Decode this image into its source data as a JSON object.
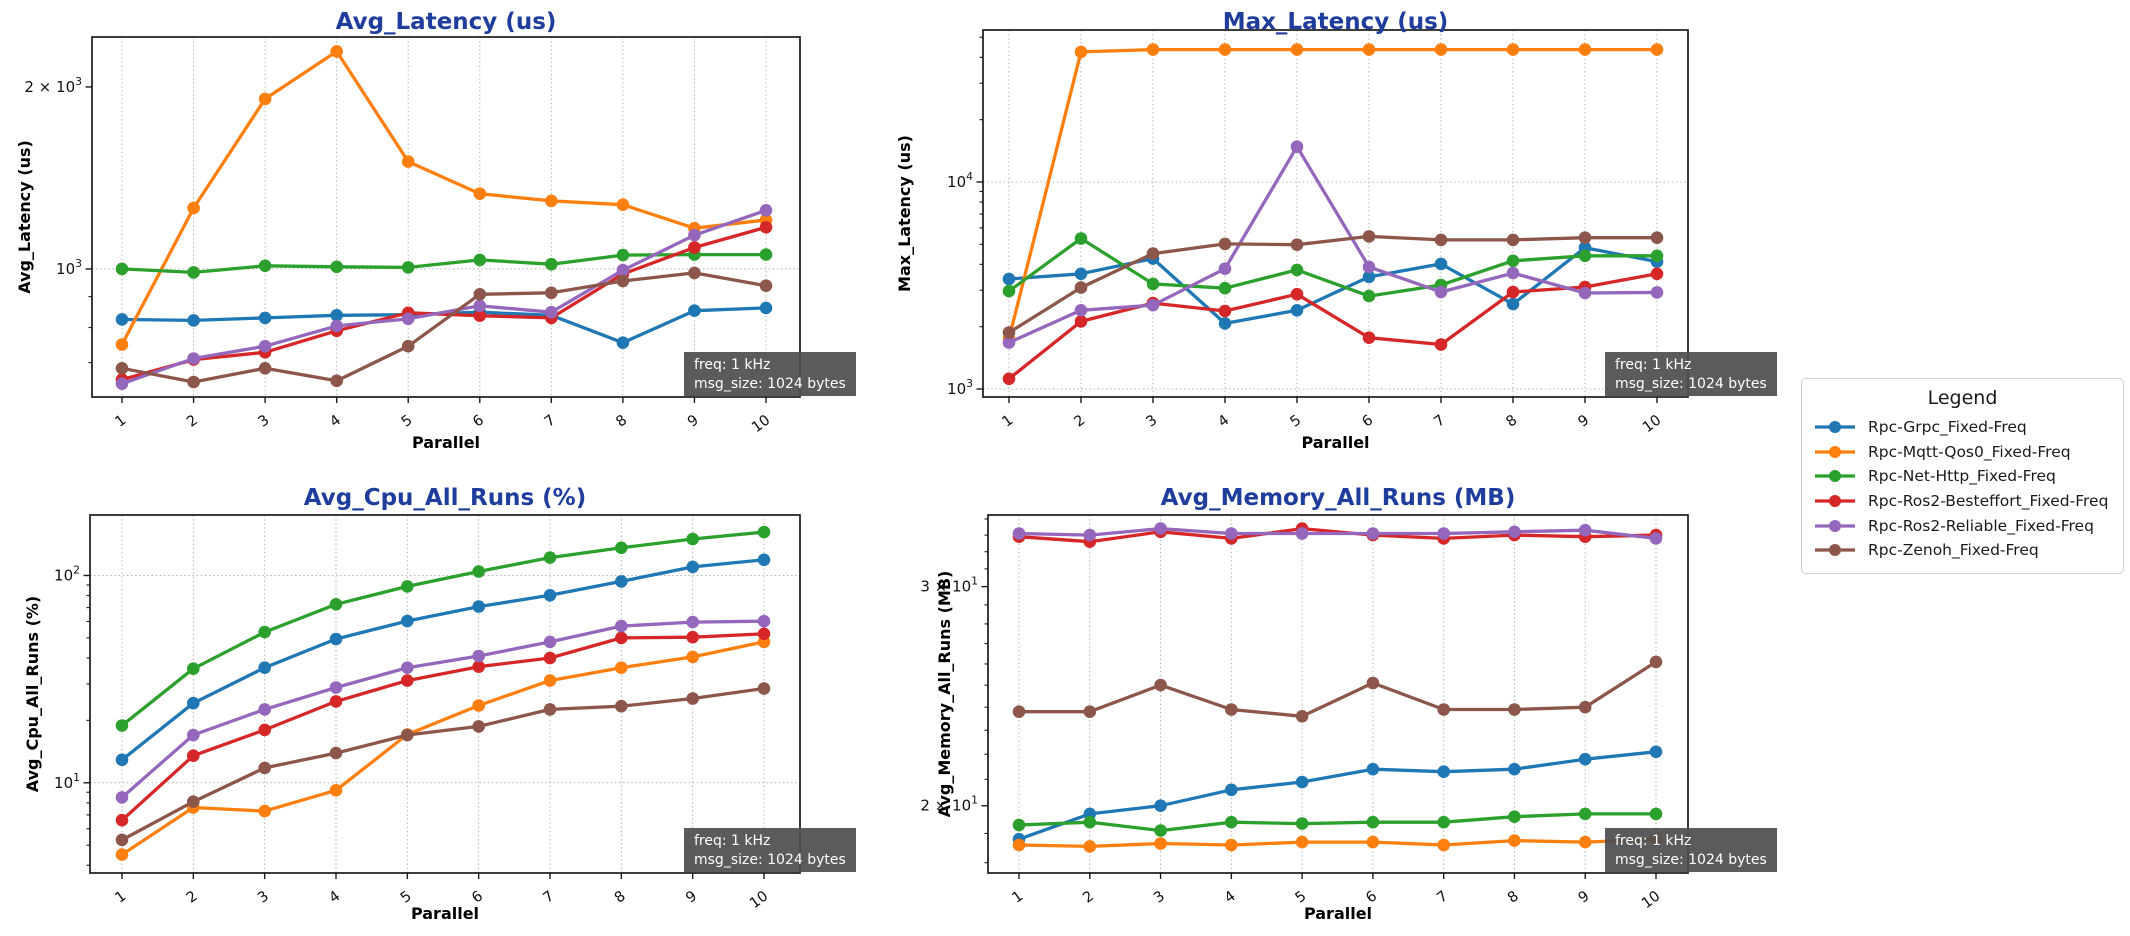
{
  "page": {
    "background": "#ffffff"
  },
  "legend": {
    "title": "Legend",
    "items": [
      {
        "key": "grpc",
        "label": "Rpc-Grpc_Fixed-Freq",
        "color": "#1f77b4"
      },
      {
        "key": "mqtt",
        "label": "Rpc-Mqtt-Qos0_Fixed-Freq",
        "color": "#ff7f0e"
      },
      {
        "key": "http",
        "label": "Rpc-Net-Http_Fixed-Freq",
        "color": "#2ca02c"
      },
      {
        "key": "besteffort",
        "label": "Rpc-Ros2-Besteffort_Fixed-Freq",
        "color": "#d62728"
      },
      {
        "key": "reliable",
        "label": "Rpc-Ros2-Reliable_Fixed-Freq",
        "color": "#9467bd"
      },
      {
        "key": "zenoh",
        "label": "Rpc-Zenoh_Fixed-Freq",
        "color": "#8c564b"
      }
    ]
  },
  "annotation": {
    "lines": [
      "freq: 1 kHz",
      "msg_size: 1024 bytes"
    ],
    "bg": "#4d4d4f",
    "fg": "#ffffff"
  },
  "style": {
    "title_color": "#1f3d9c",
    "grid_color": "#b3b3b3",
    "spine_color": "#1a1a1a",
    "tick_color": "#111111"
  },
  "x_axis": {
    "label": "Parallel",
    "ticks": [
      "1",
      "2",
      "3",
      "4",
      "5",
      "6",
      "7",
      "8",
      "9",
      "10"
    ]
  },
  "chart_data": [
    {
      "id": "avg-latency",
      "type": "line",
      "y_scale": "log",
      "title": "Avg_Latency (us)",
      "ylabel": "Avg_Latency (us)",
      "xlabel": "Parallel",
      "x": [
        1,
        2,
        3,
        4,
        5,
        6,
        7,
        8,
        9,
        10
      ],
      "ylim": [
        614,
        2419
      ],
      "yticks": [
        {
          "v": 2000,
          "label": "2 × 10^3"
        },
        {
          "v": 1000,
          "label": "10^3"
        }
      ],
      "minor_ticks": [
        700,
        800,
        900
      ],
      "grid_y": [
        1000
      ],
      "series": {
        "grpc": [
          825,
          822,
          830,
          838,
          840,
          848,
          838,
          755,
          853,
          862
        ],
        "mqtt": [
          750,
          1261,
          1911,
          2290,
          1505,
          1332,
          1296,
          1277,
          1168,
          1205
        ],
        "http": [
          1000,
          987,
          1012,
          1008,
          1006,
          1035,
          1018,
          1054,
          1056,
          1056
        ],
        "besteffort": [
          656,
          708,
          728,
          790,
          846,
          837,
          830,
          981,
          1085,
          1172
        ],
        "reliable": [
          646,
          711,
          745,
          805,
          827,
          869,
          848,
          995,
          1137,
          1250
        ],
        "zenoh": [
          685,
          650,
          685,
          653,
          745,
          908,
          913,
          955,
          985,
          938
        ]
      }
    },
    {
      "id": "max-latency",
      "type": "line",
      "y_scale": "log",
      "title": "Max_Latency (us)",
      "ylabel": "Max_Latency (us)",
      "xlabel": "Parallel",
      "x": [
        1,
        2,
        3,
        4,
        5,
        6,
        7,
        8,
        9,
        10
      ],
      "ylim": [
        915,
        54200
      ],
      "yticks": [
        {
          "v": 10000,
          "label": "10^4"
        },
        {
          "v": 1000,
          "label": "10^3"
        }
      ],
      "minor_ticks": [
        2000,
        3000,
        4000,
        5000,
        6000,
        7000,
        8000,
        9000,
        20000,
        30000,
        40000,
        50000
      ],
      "grid_y": [
        1000,
        10000
      ],
      "series": {
        "grpc": [
          3400,
          3600,
          4265,
          2075,
          2400,
          3480,
          4020,
          2570,
          4815,
          4120
        ],
        "mqtt": [
          1750,
          42500,
          43600,
          43600,
          43600,
          43600,
          43600,
          43600,
          43600,
          43600
        ],
        "http": [
          2970,
          5330,
          3220,
          3070,
          3760,
          2810,
          3180,
          4160,
          4400,
          4400
        ],
        "besteffort": [
          1120,
          2120,
          2600,
          2380,
          2870,
          1770,
          1640,
          2940,
          3110,
          3600
        ],
        "reliable": [
          1675,
          2400,
          2540,
          3810,
          14800,
          3890,
          2940,
          3630,
          2910,
          2930
        ],
        "zenoh": [
          1875,
          3090,
          4510,
          5020,
          4980,
          5460,
          5250,
          5250,
          5380,
          5380
        ]
      }
    },
    {
      "id": "avg-cpu",
      "type": "line",
      "y_scale": "log",
      "title": "Avg_Cpu_All_Runs (%)",
      "ylabel": "Avg_Cpu_All_Runs (%)",
      "xlabel": "Parallel",
      "x": [
        1,
        2,
        3,
        4,
        5,
        6,
        7,
        8,
        9,
        10
      ],
      "ylim": [
        3.67,
        195.8
      ],
      "yticks": [
        {
          "v": 100,
          "label": "10^2"
        },
        {
          "v": 10,
          "label": "10^1"
        }
      ],
      "minor_ticks": [
        4,
        5,
        6,
        7,
        8,
        9,
        20,
        30,
        40,
        50,
        60,
        70,
        80,
        90
      ],
      "grid_y": [
        10,
        100
      ],
      "series": {
        "grpc": [
          12.9,
          24.2,
          35.9,
          49.4,
          60.3,
          70.8,
          80.2,
          93.6,
          110,
          119
        ],
        "mqtt": [
          4.5,
          7.6,
          7.3,
          9.2,
          17.1,
          23.6,
          31.1,
          35.9,
          40.5,
          47.8
        ],
        "http": [
          18.9,
          35.5,
          53.3,
          72.6,
          88.6,
          104.5,
          122,
          136,
          150,
          162
        ],
        "besteffort": [
          6.6,
          13.5,
          18.0,
          24.7,
          31.1,
          36.3,
          40.0,
          50.0,
          50.4,
          52.3
        ],
        "reliable": [
          8.5,
          17.0,
          22.6,
          28.8,
          35.9,
          40.9,
          47.8,
          57.0,
          59.6,
          60.2
        ],
        "zenoh": [
          5.3,
          8.1,
          11.8,
          13.9,
          17.0,
          18.7,
          22.6,
          23.4,
          25.5,
          28.5
        ]
      }
    },
    {
      "id": "avg-memory",
      "type": "line",
      "y_scale": "log",
      "title": "Avg_Memory_All_Runs (MB)",
      "ylabel": "Avg_Memory_All_Runs (MB)",
      "xlabel": "Parallel",
      "x": [
        1,
        2,
        3,
        4,
        5,
        6,
        7,
        8,
        9,
        10
      ],
      "ylim": [
        17.66,
        34.25
      ],
      "yticks": [
        {
          "v": 30,
          "label": "3 × 10^1"
        },
        {
          "v": 20,
          "label": "2 × 10^1"
        }
      ],
      "minor_ticks": [
        18,
        19,
        21,
        22,
        23,
        24,
        25,
        26,
        27,
        28,
        29,
        31,
        32,
        33,
        34
      ],
      "grid_y": [],
      "series": {
        "grpc": [
          18.8,
          19.7,
          20.0,
          20.6,
          20.9,
          21.4,
          21.3,
          21.4,
          21.8,
          22.1
        ],
        "mqtt": [
          18.6,
          18.55,
          18.65,
          18.6,
          18.7,
          18.7,
          18.6,
          18.75,
          18.7,
          18.8
        ],
        "http": [
          19.3,
          19.4,
          19.1,
          19.4,
          19.35,
          19.4,
          19.4,
          19.6,
          19.7,
          19.7
        ],
        "besteffort": [
          32.9,
          32.6,
          33.2,
          32.8,
          33.4,
          33.0,
          32.8,
          33.0,
          32.9,
          33.0
        ],
        "reliable": [
          33.1,
          33.0,
          33.4,
          33.1,
          33.1,
          33.1,
          33.1,
          33.2,
          33.3,
          32.8
        ],
        "zenoh": [
          23.8,
          23.8,
          25.0,
          23.9,
          23.6,
          25.1,
          23.9,
          23.9,
          24.0,
          26.1
        ]
      }
    }
  ]
}
